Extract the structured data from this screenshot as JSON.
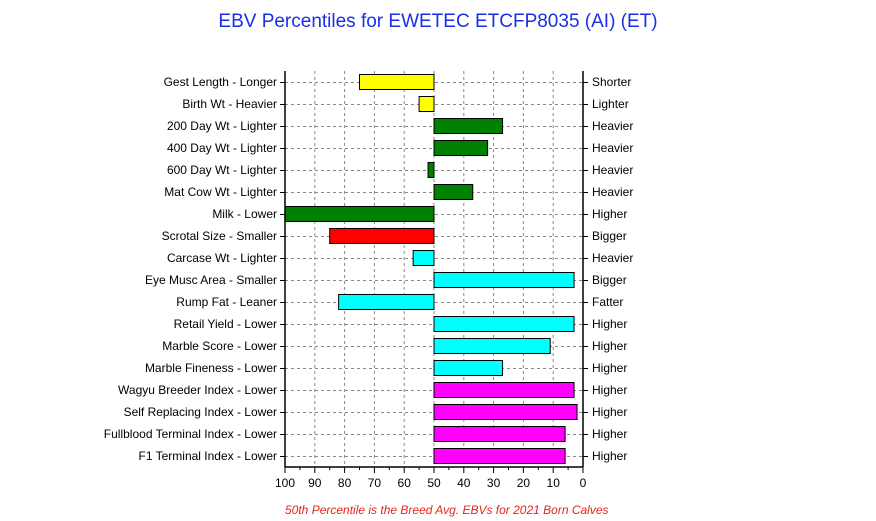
{
  "chart_data": {
    "type": "bar",
    "title": "EBV Percentiles for EWETEC ETCFP8035 (AI) (ET)",
    "footnote": "50th Percentile is the Breed Avg. EBVs for 2021 Born Calves",
    "xlim": [
      100,
      0
    ],
    "xticks": [
      "100",
      "90",
      "80",
      "70",
      "60",
      "50",
      "40",
      "30",
      "20",
      "10",
      "0"
    ],
    "grid": true,
    "baseline": 50,
    "categories": [
      "Gest Length - Longer",
      "Birth Wt - Heavier",
      "200 Day Wt - Lighter",
      "400 Day Wt - Lighter",
      "600 Day Wt - Lighter",
      "Mat Cow Wt - Lighter",
      "Milk - Lower",
      "Scrotal Size - Smaller",
      "Carcase Wt - Lighter",
      "Eye Musc Area - Smaller",
      "Rump Fat - Leaner",
      "Retail Yield - Lower",
      "Marble Score - Lower",
      "Marble Fineness - Lower",
      "Wagyu Breeder Index - Lower",
      "Self Replacing Index - Lower",
      "Fullblood Terminal Index - Lower",
      "F1 Terminal Index - Lower"
    ],
    "right_labels": [
      "Shorter",
      "Lighter",
      "Heavier",
      "Heavier",
      "Heavier",
      "Heavier",
      "Higher",
      "Bigger",
      "Heavier",
      "Bigger",
      "Fatter",
      "Higher",
      "Higher",
      "Higher",
      "Higher",
      "Higher",
      "Higher",
      "Higher"
    ],
    "values": [
      75,
      55,
      27,
      32,
      52,
      37,
      100,
      85,
      57,
      3,
      82,
      3,
      11,
      27,
      3,
      2,
      6,
      6
    ],
    "colors": [
      "#ffff00",
      "#ffff00",
      "#008000",
      "#008000",
      "#008000",
      "#008000",
      "#008000",
      "#ff0000",
      "#00ffff",
      "#00ffff",
      "#00ffff",
      "#00ffff",
      "#00ffff",
      "#00ffff",
      "#ff00ff",
      "#ff00ff",
      "#ff00ff",
      "#ff00ff"
    ]
  }
}
